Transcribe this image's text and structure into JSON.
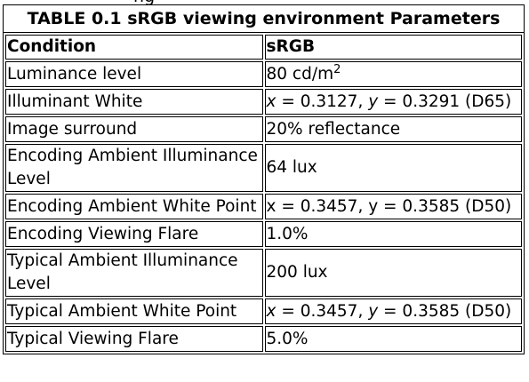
{
  "table": {
    "top_fragment": "ng",
    "caption": "TABLE 0.1 sRGB viewing environment Parameters",
    "headers": [
      "Condition",
      "sRGB"
    ],
    "rows": [
      {
        "condition": "Luminance level",
        "value": "80 cd/m",
        "value_sup": "2"
      },
      {
        "condition": "Illuminant White",
        "x_var": "x",
        "x_val": " = 0.3127, ",
        "y_var": "y",
        "y_val": " = 0.3291 (D65)"
      },
      {
        "condition": "Image surround",
        "value": "20% reflectance"
      },
      {
        "condition": "Encoding Ambient Illuminance Level",
        "value": "64 lux"
      },
      {
        "condition": "Encoding Ambient White Point",
        "value": "x = 0.3457, y = 0.3585 (D50)"
      },
      {
        "condition": "Encoding Viewing Flare",
        "value": "1.0%"
      },
      {
        "condition": "Typical Ambient Illuminance Level",
        "value": "200 lux"
      },
      {
        "condition": "Typical Ambient White Point",
        "x_var": "x",
        "x_val": " = 0.3457, ",
        "y_var": "y",
        "y_val": " = 0.3585 (D50)"
      },
      {
        "condition": "Typical Viewing Flare",
        "value": "5.0%"
      }
    ]
  }
}
